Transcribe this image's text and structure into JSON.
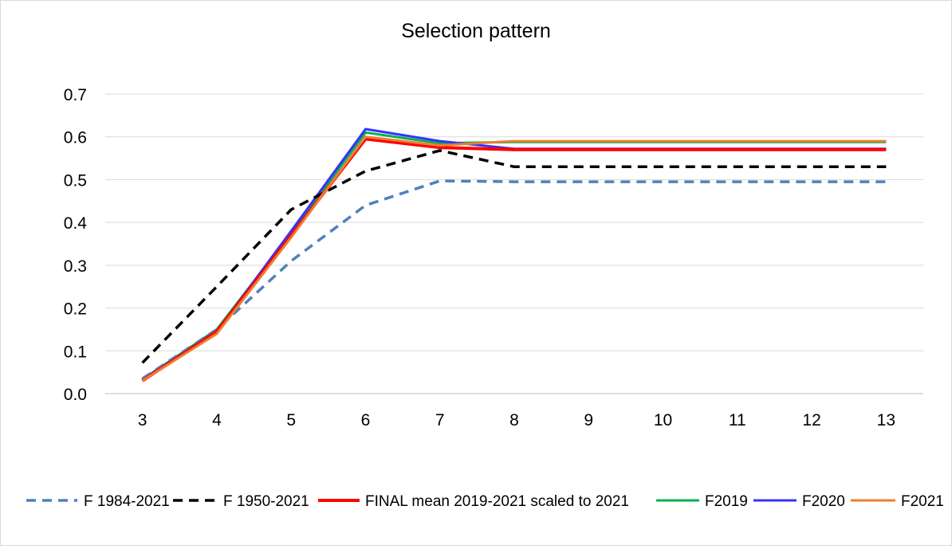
{
  "chart_data": {
    "type": "line",
    "title": "Selection pattern",
    "xlabel": "",
    "ylabel": "",
    "x": [
      3,
      4,
      5,
      6,
      7,
      8,
      9,
      10,
      11,
      12,
      13
    ],
    "ylim": [
      0.0,
      0.7
    ],
    "yticks": [
      "0.0",
      "0.1",
      "0.2",
      "0.3",
      "0.4",
      "0.5",
      "0.6",
      "0.7"
    ],
    "grid": true,
    "legend_position": "bottom",
    "series": [
      {
        "name": "F 1984-2021",
        "color": "#4f81bd",
        "dash": "dashed",
        "values": [
          0.035,
          0.15,
          0.31,
          0.44,
          0.497,
          0.495,
          0.495,
          0.495,
          0.495,
          0.495,
          0.495
        ]
      },
      {
        "name": "F 1950-2021",
        "color": "#000000",
        "dash": "dashed",
        "values": [
          0.072,
          0.25,
          0.43,
          0.52,
          0.568,
          0.53,
          0.53,
          0.53,
          0.53,
          0.53,
          0.53
        ]
      },
      {
        "name": "FINAL mean 2019-2021 scaled to 2021",
        "color": "#ff0000",
        "dash": "solid",
        "values": [
          0.03,
          0.145,
          0.37,
          0.595,
          0.575,
          0.57,
          0.57,
          0.57,
          0.57,
          0.57,
          0.57
        ]
      },
      {
        "name": "F2019",
        "color": "#00b050",
        "dash": "solid",
        "values": [
          0.033,
          0.15,
          0.375,
          0.61,
          0.585,
          0.588,
          0.588,
          0.588,
          0.588,
          0.588,
          0.588
        ]
      },
      {
        "name": "F2020",
        "color": "#3333ff",
        "dash": "solid",
        "values": [
          0.033,
          0.145,
          0.38,
          0.618,
          0.59,
          0.572,
          0.572,
          0.572,
          0.572,
          0.572,
          0.572
        ]
      },
      {
        "name": "F2021",
        "color": "#ed7d31",
        "dash": "solid",
        "values": [
          0.03,
          0.14,
          0.365,
          0.6,
          0.58,
          0.59,
          0.59,
          0.59,
          0.59,
          0.59,
          0.59
        ]
      }
    ]
  }
}
